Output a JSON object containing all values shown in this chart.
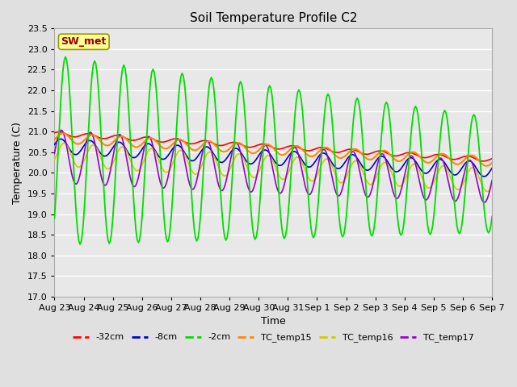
{
  "title": "Soil Temperature Profile C2",
  "xlabel": "Time",
  "ylabel": "Temperature (C)",
  "ylim": [
    17.0,
    23.5
  ],
  "yticks": [
    17.0,
    17.5,
    18.0,
    18.5,
    19.0,
    19.5,
    20.0,
    20.5,
    21.0,
    21.5,
    22.0,
    22.5,
    23.0,
    23.5
  ],
  "background_color": "#e0e0e0",
  "axes_bg_color": "#e8e8e8",
  "grid_color": "#ffffff",
  "legend_label": "SW_met",
  "legend_box_color": "#ffff99",
  "legend_text_color": "#990000",
  "series_colors": {
    "-32cm": "#ff0000",
    "-8cm": "#0000cc",
    "-2cm": "#00dd00",
    "TC_temp15": "#ff8800",
    "TC_temp16": "#cccc00",
    "TC_temp17": "#9900cc"
  },
  "n_days": 15,
  "x_tick_labels": [
    "Aug 23",
    "Aug 24",
    "Aug 25",
    "Aug 26",
    "Aug 27",
    "Aug 28",
    "Aug 29",
    "Aug 30",
    "Aug 31",
    "Sep 1",
    "Sep 2",
    "Sep 3",
    "Sep 4",
    "Sep 5",
    "Sep 6",
    "Sep 7"
  ],
  "x_tick_positions": [
    0,
    1,
    2,
    3,
    4,
    5,
    6,
    7,
    8,
    9,
    10,
    11,
    12,
    13,
    14,
    15
  ]
}
